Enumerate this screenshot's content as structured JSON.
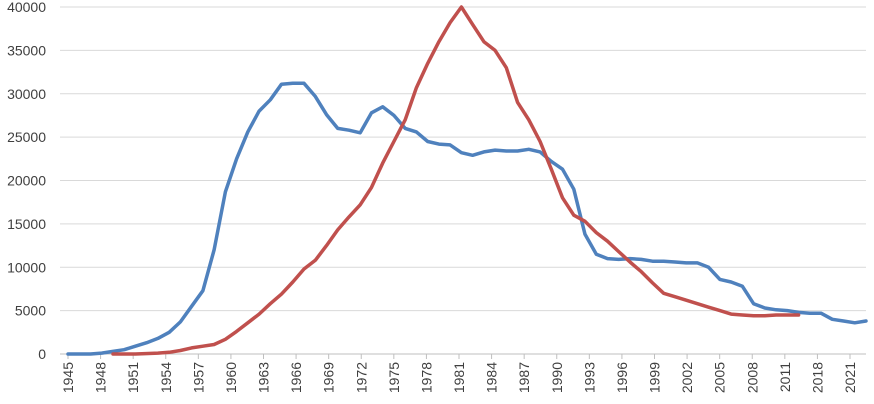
{
  "chart_data": {
    "type": "line",
    "title": "",
    "xlabel": "",
    "ylabel": "",
    "ylim": [
      0,
      40000
    ],
    "y_ticks": [
      0,
      5000,
      10000,
      15000,
      20000,
      25000,
      30000,
      35000,
      40000
    ],
    "y_tick_labels": [
      "0",
      "5000",
      "10000",
      "15000",
      "20000",
      "25000",
      "30000",
      "35000",
      "40000"
    ],
    "x_tick_labels": [
      "1945",
      "1948",
      "1951",
      "1954",
      "1957",
      "1960",
      "1963",
      "1966",
      "1969",
      "1972",
      "1975",
      "1978",
      "1981",
      "1984",
      "1987",
      "1990",
      "1993",
      "1996",
      "1999",
      "2002",
      "2005",
      "2008",
      "2011",
      "2018",
      "2021"
    ],
    "grid": "horizontal",
    "legend": "none",
    "series": [
      {
        "color": "#4F81BD",
        "points": [
          [
            0,
            0
          ],
          [
            2,
            0
          ],
          [
            3,
            100
          ],
          [
            4,
            300
          ],
          [
            5,
            500
          ],
          [
            6,
            900
          ],
          [
            7,
            1300
          ],
          [
            8,
            1800
          ],
          [
            9,
            2500
          ],
          [
            10,
            3700
          ],
          [
            11,
            5500
          ],
          [
            12,
            7300
          ],
          [
            13,
            12000
          ],
          [
            14,
            18700
          ],
          [
            15,
            22500
          ],
          [
            16,
            25600
          ],
          [
            17,
            28000
          ],
          [
            18,
            29300
          ],
          [
            19,
            31100
          ],
          [
            20,
            31200
          ],
          [
            21,
            31200
          ],
          [
            22,
            29700
          ],
          [
            23,
            27600
          ],
          [
            24,
            26000
          ],
          [
            25,
            25800
          ],
          [
            26,
            25500
          ],
          [
            27,
            27800
          ],
          [
            28,
            28500
          ],
          [
            29,
            27500
          ],
          [
            30,
            26000
          ],
          [
            31,
            25600
          ],
          [
            32,
            24500
          ],
          [
            33,
            24200
          ],
          [
            34,
            24100
          ],
          [
            35,
            23200
          ],
          [
            36,
            22900
          ],
          [
            37,
            23300
          ],
          [
            38,
            23500
          ],
          [
            39,
            23400
          ],
          [
            40,
            23400
          ],
          [
            41,
            23600
          ],
          [
            42,
            23300
          ],
          [
            43,
            22200
          ],
          [
            44,
            21300
          ],
          [
            45,
            19000
          ],
          [
            46,
            13800
          ],
          [
            47,
            11500
          ],
          [
            48,
            11000
          ],
          [
            49,
            10900
          ],
          [
            50,
            11000
          ],
          [
            51,
            10900
          ],
          [
            52,
            10700
          ],
          [
            53,
            10700
          ],
          [
            54,
            10600
          ],
          [
            55,
            10500
          ],
          [
            56,
            10500
          ],
          [
            57,
            10000
          ],
          [
            58,
            8600
          ],
          [
            59,
            8300
          ],
          [
            60,
            7800
          ],
          [
            61,
            5800
          ],
          [
            62,
            5300
          ],
          [
            63,
            5100
          ],
          [
            64,
            5000
          ],
          [
            65,
            4800
          ],
          [
            66,
            4700
          ],
          [
            67,
            4700
          ],
          [
            68,
            4000
          ],
          [
            69,
            3800
          ],
          [
            70,
            3600
          ],
          [
            71,
            3800
          ]
        ]
      },
      {
        "color": "#C0504D",
        "points": [
          [
            4,
            0
          ],
          [
            6,
            0
          ],
          [
            8,
            100
          ],
          [
            9,
            200
          ],
          [
            10,
            400
          ],
          [
            11,
            700
          ],
          [
            12,
            900
          ],
          [
            13,
            1100
          ],
          [
            14,
            1700
          ],
          [
            15,
            2600
          ],
          [
            16,
            3600
          ],
          [
            17,
            4600
          ],
          [
            18,
            5800
          ],
          [
            19,
            6900
          ],
          [
            20,
            8300
          ],
          [
            21,
            9800
          ],
          [
            22,
            10800
          ],
          [
            23,
            12500
          ],
          [
            24,
            14300
          ],
          [
            25,
            15800
          ],
          [
            26,
            17200
          ],
          [
            27,
            19200
          ],
          [
            28,
            22000
          ],
          [
            29,
            24500
          ],
          [
            30,
            27000
          ],
          [
            31,
            30700
          ],
          [
            32,
            33500
          ],
          [
            33,
            36000
          ],
          [
            34,
            38200
          ],
          [
            35,
            40000
          ],
          [
            36,
            38000
          ],
          [
            37,
            36000
          ],
          [
            38,
            35000
          ],
          [
            39,
            33000
          ],
          [
            40,
            29000
          ],
          [
            41,
            27000
          ],
          [
            42,
            24500
          ],
          [
            43,
            21300
          ],
          [
            44,
            18000
          ],
          [
            45,
            16000
          ],
          [
            46,
            15300
          ],
          [
            47,
            14000
          ],
          [
            48,
            13000
          ],
          [
            49,
            11800
          ],
          [
            50,
            10600
          ],
          [
            51,
            9500
          ],
          [
            52,
            8200
          ],
          [
            53,
            7000
          ],
          [
            54,
            6600
          ],
          [
            55,
            6200
          ],
          [
            56,
            5800
          ],
          [
            57,
            5400
          ],
          [
            58,
            5000
          ],
          [
            59,
            4600
          ],
          [
            60,
            4500
          ],
          [
            61,
            4400
          ],
          [
            62,
            4400
          ],
          [
            63,
            4500
          ],
          [
            64,
            4500
          ],
          [
            65,
            4500
          ]
        ]
      }
    ]
  }
}
